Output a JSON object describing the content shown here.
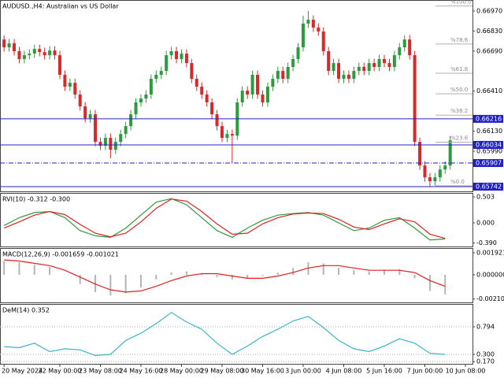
{
  "chart_data": [
    {
      "type": "candlestick",
      "title": "AUDUSD.,H4:  Australian vs US Dollar",
      "up_color": "#2e9a3e",
      "down_color": "#d62a2a",
      "xlim": [
        -0.8,
        92.4
      ],
      "xticks": [
        {
          "value": 0,
          "label": "20 May 2024"
        },
        {
          "value": 11,
          "label": "22 May 00:00"
        },
        {
          "value": 19,
          "label": "23 May 08:00"
        },
        {
          "value": 27,
          "label": "24 May 16:00"
        },
        {
          "value": 35,
          "label": "28 May 00:00"
        },
        {
          "value": 43,
          "label": "29 May 08:00"
        },
        {
          "value": 51,
          "label": "30 May 16:00"
        },
        {
          "value": 59,
          "label": "3 Jun 00:00"
        },
        {
          "value": 67,
          "label": "4 Jun 08:00"
        },
        {
          "value": 75,
          "label": "5 Jun 16:00"
        },
        {
          "value": 83,
          "label": "7 Jun 00:00"
        },
        {
          "value": 91,
          "label": "10 Jun 08:00"
        }
      ],
      "ylim": [
        0.65709,
        0.67047
      ],
      "yticks": [
        {
          "value": 0.6697,
          "label": "0.66970"
        },
        {
          "value": 0.6683,
          "label": "0.66830"
        },
        {
          "value": 0.6669,
          "label": "0.66690"
        },
        {
          "value": 0.6641,
          "label": "0.66410"
        },
        {
          "value": 0.6613,
          "label": "0.66130"
        },
        {
          "value": 0.6599,
          "label": "0.65990"
        }
      ],
      "levels": [
        {
          "value": 0.66216,
          "style": "solid"
        },
        {
          "value": 0.66034,
          "style": "solid"
        },
        {
          "value": 0.65907,
          "style": "dashdot"
        },
        {
          "value": 0.65742,
          "style": "solid"
        }
      ],
      "level_color": "#2020c8",
      "fib": [
        {
          "value": 0.67005,
          "label": "%100.0"
        },
        {
          "value": 0.66739,
          "label": "%78.6"
        },
        {
          "value": 0.66535,
          "label": "%61.8"
        },
        {
          "value": 0.66391,
          "label": "%50.0"
        },
        {
          "value": 0.66242,
          "label": "%38.2"
        },
        {
          "value": 0.66053,
          "label": "%23.6"
        },
        {
          "value": 0.65748,
          "label": "%0.0"
        }
      ],
      "open": [
        0.66771,
        0.66716,
        0.66744,
        0.66689,
        0.66634,
        0.66661,
        0.66672,
        0.66705,
        0.66683,
        0.66661,
        0.66694,
        0.66661,
        0.66524,
        0.66441,
        0.66468,
        0.66386,
        0.66303,
        0.6622,
        0.66248,
        0.66055,
        0.66028,
        0.66083,
        0.66,
        0.66055,
        0.6611,
        0.66165,
        0.66248,
        0.66331,
        0.66358,
        0.66386,
        0.66496,
        0.66524,
        0.66551,
        0.66661,
        0.66689,
        0.66634,
        0.66672,
        0.66606,
        0.66496,
        0.66441,
        0.66386,
        0.66331,
        0.66248,
        0.66165,
        0.66083,
        0.6611,
        0.66099,
        0.66331,
        0.66413,
        0.66386,
        0.66524,
        0.66386,
        0.66331,
        0.66441,
        0.66496,
        0.66551,
        0.66496,
        0.66579,
        0.66634,
        0.66716,
        0.66882,
        0.66909,
        0.66854,
        0.66827,
        0.66689,
        0.66551,
        0.66606,
        0.66496,
        0.66524,
        0.66496,
        0.66551,
        0.66579,
        0.66551,
        0.66606,
        0.66579,
        0.66634,
        0.66606,
        0.66579,
        0.66661,
        0.66716,
        0.66771,
        0.66661,
        0.66055,
        0.6589,
        0.65807,
        0.6578,
        0.65807,
        0.65862,
        0.6589
      ],
      "high": [
        0.66801,
        0.66774,
        0.66774,
        0.66719,
        0.66691,
        0.66702,
        0.66735,
        0.66735,
        0.66713,
        0.66724,
        0.66724,
        0.66691,
        0.66554,
        0.66498,
        0.66498,
        0.66416,
        0.66333,
        0.66278,
        0.66278,
        0.66085,
        0.66113,
        0.66113,
        0.66085,
        0.6614,
        0.66195,
        0.66278,
        0.66361,
        0.66388,
        0.66416,
        0.66526,
        0.66554,
        0.66581,
        0.66691,
        0.66719,
        0.66719,
        0.66702,
        0.66702,
        0.66636,
        0.66526,
        0.66471,
        0.66416,
        0.66361,
        0.66278,
        0.66195,
        0.6614,
        0.6614,
        0.66361,
        0.66443,
        0.66443,
        0.66554,
        0.66554,
        0.66416,
        0.66471,
        0.66526,
        0.66581,
        0.66581,
        0.66609,
        0.66664,
        0.66746,
        0.66937,
        0.6697,
        0.66939,
        0.66884,
        0.66857,
        0.66719,
        0.66636,
        0.66636,
        0.66554,
        0.66554,
        0.66581,
        0.66609,
        0.66609,
        0.66636,
        0.66636,
        0.66664,
        0.66664,
        0.66636,
        0.66691,
        0.66746,
        0.66801,
        0.66801,
        0.66691,
        0.66085,
        0.6592,
        0.65837,
        0.65837,
        0.65892,
        0.6592,
        0.66096
      ],
      "low": [
        0.66686,
        0.66686,
        0.66659,
        0.66604,
        0.66604,
        0.66631,
        0.66642,
        0.66653,
        0.66631,
        0.66631,
        0.66631,
        0.66494,
        0.66411,
        0.66411,
        0.66356,
        0.66273,
        0.6619,
        0.6619,
        0.66025,
        0.65998,
        0.65998,
        0.6594,
        0.6597,
        0.66025,
        0.6608,
        0.66135,
        0.66218,
        0.66301,
        0.66328,
        0.66356,
        0.66466,
        0.66494,
        0.66521,
        0.66631,
        0.66604,
        0.66604,
        0.66576,
        0.66466,
        0.66411,
        0.66356,
        0.66301,
        0.66218,
        0.66135,
        0.66053,
        0.66053,
        0.65907,
        0.66069,
        0.66301,
        0.66356,
        0.66356,
        0.66356,
        0.66301,
        0.66301,
        0.66411,
        0.66466,
        0.66466,
        0.66466,
        0.66549,
        0.66604,
        0.66686,
        0.66852,
        0.66824,
        0.66797,
        0.66659,
        0.66521,
        0.66521,
        0.66466,
        0.66466,
        0.66466,
        0.66466,
        0.66521,
        0.66521,
        0.66521,
        0.66549,
        0.66549,
        0.66576,
        0.66549,
        0.66549,
        0.66631,
        0.66686,
        0.66631,
        0.66025,
        0.6586,
        0.65777,
        0.65742,
        0.6575,
        0.65777,
        0.65832,
        0.6586
      ],
      "close": [
        0.66716,
        0.66744,
        0.66689,
        0.66634,
        0.66661,
        0.66672,
        0.66705,
        0.66683,
        0.66661,
        0.66694,
        0.66661,
        0.66524,
        0.66441,
        0.66468,
        0.66386,
        0.66303,
        0.6622,
        0.66248,
        0.66055,
        0.66028,
        0.66083,
        0.66,
        0.66055,
        0.6611,
        0.66165,
        0.66248,
        0.66331,
        0.66358,
        0.66386,
        0.66496,
        0.66524,
        0.66551,
        0.66661,
        0.66689,
        0.66634,
        0.66672,
        0.66606,
        0.66496,
        0.66441,
        0.66386,
        0.66331,
        0.66248,
        0.66165,
        0.66083,
        0.6611,
        0.66099,
        0.66331,
        0.66413,
        0.66386,
        0.66524,
        0.66386,
        0.66331,
        0.66441,
        0.66496,
        0.66551,
        0.66496,
        0.66579,
        0.66634,
        0.66716,
        0.66882,
        0.66909,
        0.66854,
        0.66827,
        0.66689,
        0.66551,
        0.66606,
        0.66496,
        0.66524,
        0.66496,
        0.66551,
        0.66579,
        0.66551,
        0.66606,
        0.66579,
        0.66634,
        0.66606,
        0.66579,
        0.66661,
        0.66716,
        0.66771,
        0.66661,
        0.66055,
        0.6589,
        0.65807,
        0.6578,
        0.65807,
        0.65862,
        0.6589,
        0.66066
      ]
    },
    {
      "type": "line",
      "title": "RVI(10) -0.312 -0.300",
      "x": [
        0,
        3,
        6,
        9,
        12,
        15,
        18,
        21,
        24,
        27,
        30,
        33,
        36,
        39,
        42,
        45,
        48,
        51,
        54,
        57,
        60,
        63,
        66,
        69,
        72,
        75,
        78,
        81,
        84,
        87
      ],
      "ylim": [
        -0.457,
        0.579
      ],
      "yticks": [
        0.503,
        {
          "value": 0,
          "label": "0.000"
        },
        {
          "value": -0.39,
          "label": "-0.390"
        }
      ],
      "series": [
        {
          "color": "#2e9a3e",
          "values": [
            -0.05,
            0.1,
            0.2,
            0.22,
            0.1,
            -0.15,
            -0.25,
            -0.28,
            -0.1,
            0.15,
            0.4,
            0.47,
            0.35,
            0.1,
            -0.15,
            -0.28,
            -0.1,
            0.05,
            0.15,
            0.18,
            0.2,
            0.15,
            0,
            -0.15,
            -0.1,
            0.05,
            0.1,
            -0.1,
            -0.33,
            -0.31
          ]
        },
        {
          "color": "#e02020",
          "values": [
            -0.1,
            0.02,
            0.15,
            0.22,
            0.16,
            -0.03,
            -0.2,
            -0.27,
            -0.2,
            0.02,
            0.28,
            0.46,
            0.42,
            0.22,
            -0.02,
            -0.22,
            -0.2,
            -0.02,
            0.1,
            0.17,
            0.19,
            0.18,
            0.07,
            -0.08,
            -0.13,
            -0.02,
            0.08,
            0.02,
            -0.22,
            -0.3
          ]
        }
      ]
    },
    {
      "type": "combo",
      "title": "MACD(12,26,9) -0.001659 -0.001021",
      "x": [
        0,
        3,
        6,
        9,
        12,
        15,
        18,
        21,
        24,
        27,
        30,
        33,
        36,
        39,
        42,
        45,
        48,
        51,
        54,
        57,
        60,
        63,
        66,
        69,
        72,
        75,
        78,
        81,
        84,
        87
      ],
      "ylim": [
        -0.0024,
        0.002332
      ],
      "yticks": [
        0.001921,
        {
          "value": 0,
          "label": "0.000000"
        },
        -0.002101
      ],
      "series": [
        {
          "kind": "bar",
          "color": "#b4b4b4",
          "values": [
            0.0012,
            0.0011,
            0.0009,
            0.0007,
            0,
            -0.0008,
            -0.0015,
            -0.0018,
            -0.0016,
            -0.0011,
            -0.0004,
            0.0002,
            0.0003,
            0.0001,
            -0.0002,
            -0.0004,
            -0.0003,
            -0.0001,
            0.0002,
            0.0006,
            0.0011,
            0.001,
            0.0006,
            0.0004,
            0.0003,
            0.0004,
            0.0005,
            -0.0003,
            -0.0014,
            -0.0017
          ]
        },
        {
          "kind": "line",
          "color": "#e02020",
          "values": [
            0.0013,
            0.0012,
            0.001,
            0.0008,
            0.0004,
            -0.0002,
            -0.0008,
            -0.0013,
            -0.0015,
            -0.0014,
            -0.001,
            -0.0005,
            -0.0001,
            0.0001,
            0.0001,
            -0.0001,
            -0.0003,
            -0.0003,
            -0.0001,
            0.0002,
            0.0006,
            0.0008,
            0.0008,
            0.0006,
            0.0004,
            0.0004,
            0.0004,
            0.0002,
            -0.0005,
            -0.001
          ]
        }
      ]
    },
    {
      "type": "line",
      "title": "DeM(14) 0.352",
      "grid": true,
      "x": [
        0,
        3,
        6,
        9,
        12,
        15,
        18,
        21,
        24,
        27,
        30,
        33,
        36,
        39,
        42,
        45,
        48,
        51,
        54,
        57,
        60,
        63,
        66,
        69,
        72,
        75,
        78,
        81,
        84,
        87
      ],
      "ylim": [
        0.131,
        1.203
      ],
      "yticks": [
        0.794,
        {
          "value": 0.3,
          "label": "0.300"
        },
        {
          "value": 0.17,
          "label": "0.170"
        }
      ],
      "series": [
        {
          "color": "#3cb4c8",
          "values": [
            0.44,
            0.42,
            0.5,
            0.35,
            0.4,
            0.38,
            0.28,
            0.3,
            0.55,
            0.68,
            0.85,
            1.05,
            0.88,
            0.75,
            0.5,
            0.3,
            0.45,
            0.62,
            0.75,
            0.9,
            0.98,
            0.78,
            0.55,
            0.4,
            0.35,
            0.45,
            0.58,
            0.5,
            0.32,
            0.3
          ]
        }
      ]
    }
  ]
}
